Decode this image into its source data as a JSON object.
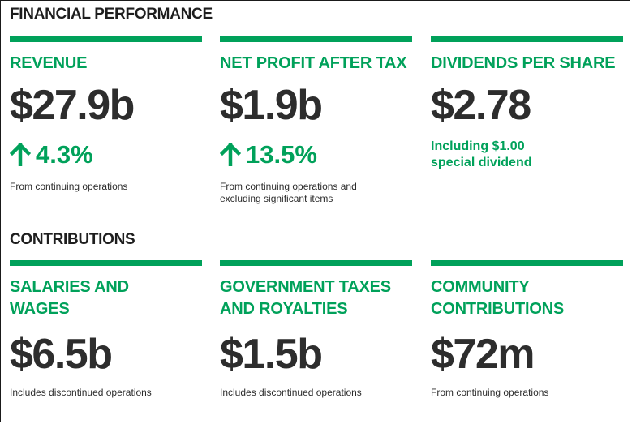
{
  "financial": {
    "heading": "FINANCIAL PERFORMANCE",
    "cards": [
      {
        "label": "REVENUE",
        "value": "$27.9b",
        "change": "4.3%",
        "note_line1": "From continuing operations",
        "note_line2": ""
      },
      {
        "label": "NET PROFIT AFTER TAX",
        "value": "$1.9b",
        "change": "13.5%",
        "note_line1": "From continuing operations and",
        "note_line2": "excluding significant items"
      },
      {
        "label": "DIVIDENDS PER SHARE",
        "value": "$2.78",
        "subtext_line1": "Including $1.00",
        "subtext_line2": "special dividend"
      }
    ]
  },
  "contributions": {
    "heading": "CONTRIBUTIONS",
    "cards": [
      {
        "label_line1": "SALARIES AND",
        "label_line2": "WAGES",
        "value": "$6.5b",
        "note": "Includes discontinued operations"
      },
      {
        "label_line1": "GOVERNMENT TAXES",
        "label_line2": "AND ROYALTIES",
        "value": "$1.5b",
        "note": "Includes discontinued operations"
      },
      {
        "label_line1": "COMMUNITY",
        "label_line2": "CONTRIBUTIONS",
        "value": "$72m",
        "note": "From continuing operations"
      }
    ]
  },
  "icons": {
    "increase": "arrow-up-icon"
  },
  "colors": {
    "accent_green": "#00a15a",
    "value_text": "#2d2d2d",
    "heading_text": "#1e1e1e"
  }
}
